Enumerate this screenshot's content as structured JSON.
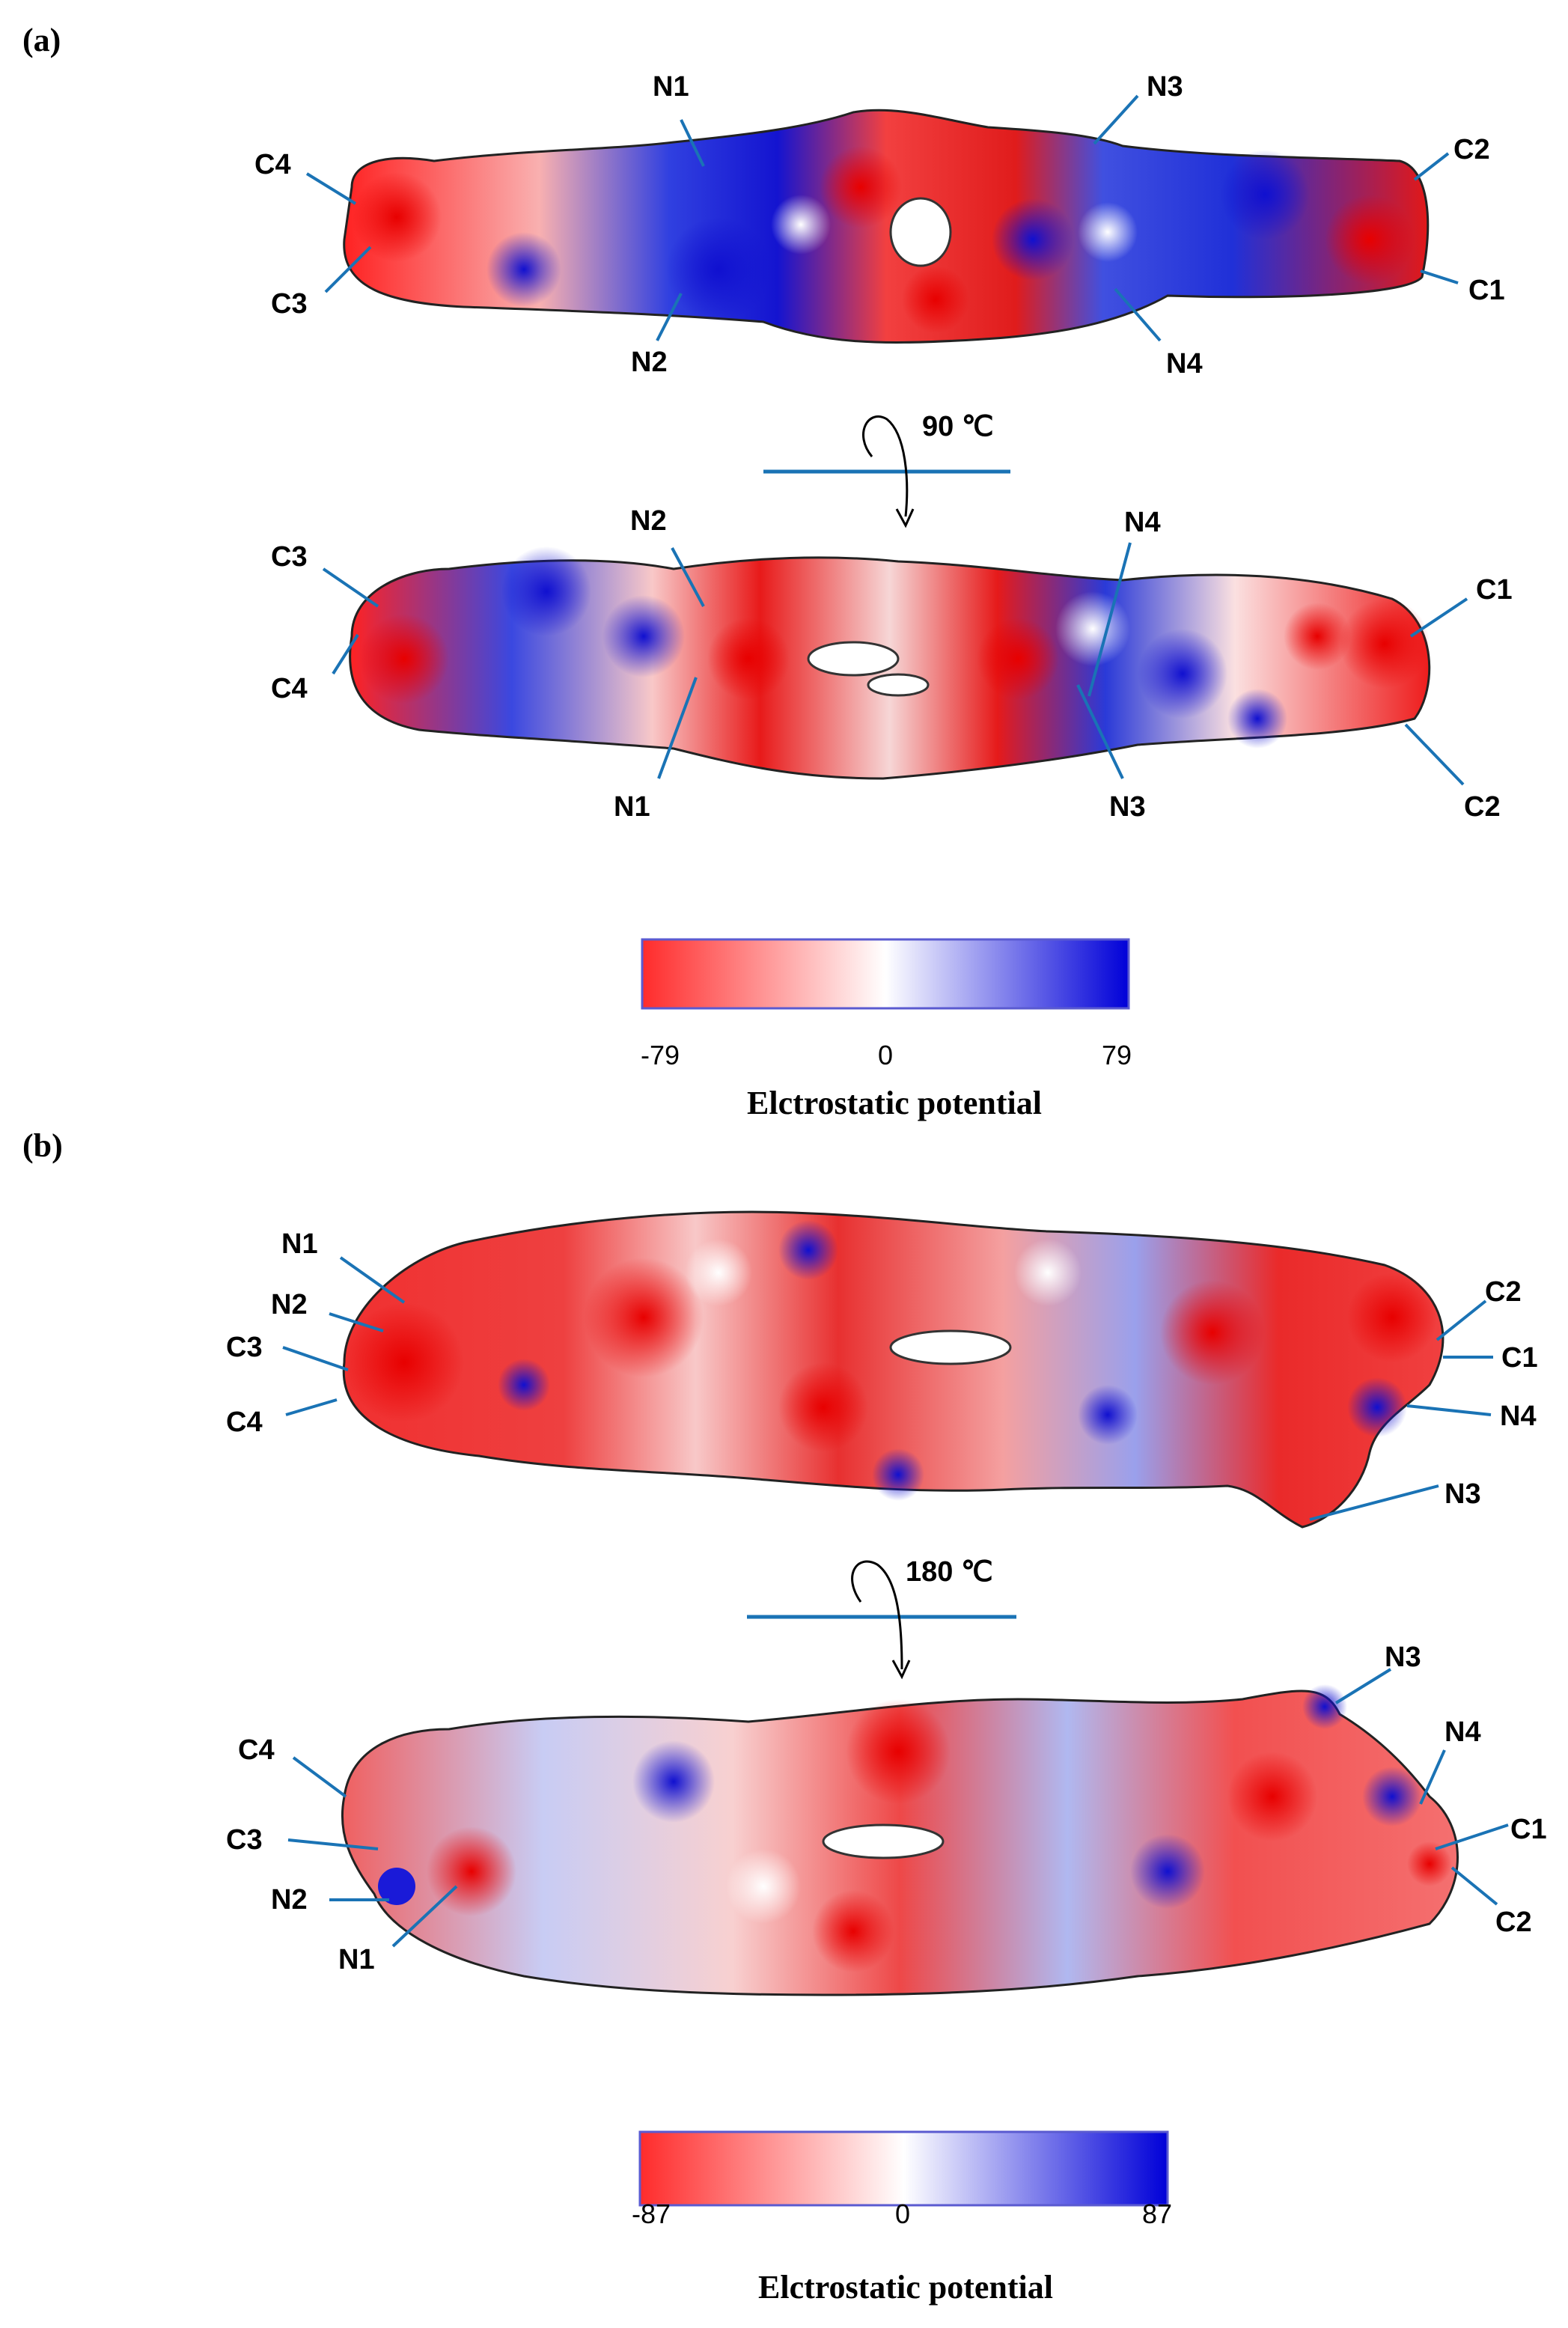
{
  "panel_a": {
    "label": "(a)",
    "rotation_label": "90 ℃",
    "scale_ticks": [
      "-79",
      "0",
      "79"
    ],
    "scale_title": "Elctrostatic potential",
    "view1_labels": [
      "C4",
      "C3",
      "N1",
      "N2",
      "N3",
      "N4",
      "C2",
      "C1"
    ],
    "view2_labels": [
      "C3",
      "C4",
      "N2",
      "N1",
      "N4",
      "N3",
      "C1",
      "C2"
    ]
  },
  "panel_b": {
    "label": "(b)",
    "rotation_label": "180 ℃",
    "scale_ticks": [
      "-87",
      "0",
      "87"
    ],
    "scale_title": "Elctrostatic potential",
    "view1_labels": [
      "N1",
      "N2",
      "C3",
      "C4",
      "C2",
      "C1",
      "N4",
      "N3"
    ],
    "view2_labels": [
      "C4",
      "C3",
      "N2",
      "N1",
      "N3",
      "N4",
      "C1",
      "C2"
    ]
  },
  "colors": {
    "negative": "#ff1a1a",
    "neutral": "#ffffff",
    "positive": "#0000d8",
    "leader_line": "#1a73b5"
  }
}
